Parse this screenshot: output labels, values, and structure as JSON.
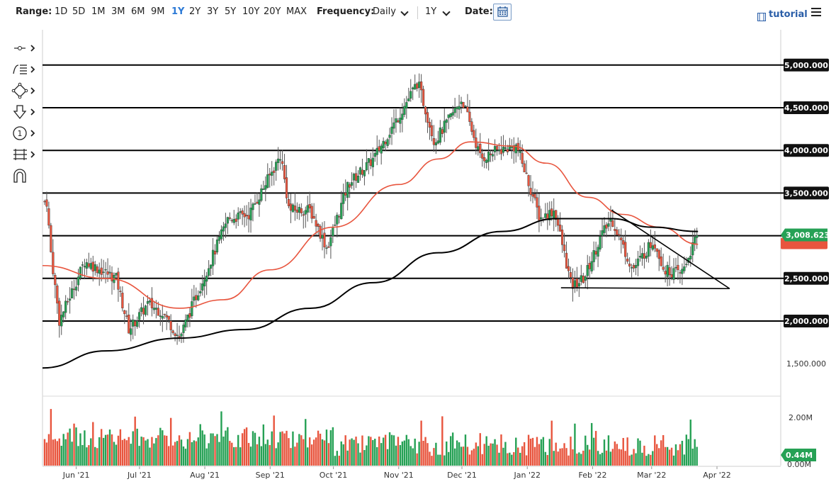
{
  "toolbar": {
    "range_label": "Range:",
    "ranges": [
      "1D",
      "5D",
      "1M",
      "3M",
      "6M",
      "9M",
      "1Y",
      "2Y",
      "3Y",
      "5Y",
      "10Y",
      "20Y",
      "MAX"
    ],
    "active_range": "1Y",
    "frequency_label": "Frequency:",
    "frequency_value": "Daily",
    "period_value": "1Y",
    "date_label": "Date:",
    "tutorial_label": "tutorial"
  },
  "drawing_tools": [
    "cursor-tool-icon",
    "line-list-icon",
    "shape-tool-icon",
    "arrow-down-icon",
    "number-marker-icon",
    "measure-tool-icon",
    "magnet-icon"
  ],
  "chart_data": {
    "type": "candlestick",
    "x_tick_labels": [
      "Jun '21",
      "Jul '21",
      "Aug '21",
      "Sep '21",
      "Oct '21",
      "Nov '21",
      "Dec '21",
      "Jan '22",
      "Feb '22",
      "Mar '22",
      "Apr '22"
    ],
    "y_tick_labels": [
      "5,000.000",
      "4,500.000",
      "4,000.000",
      "3,500.000",
      "2,500.000",
      "2,000.000",
      "1,500.000"
    ],
    "y_tick_values": [
      5000,
      4500,
      4000,
      3500,
      2500,
      2000,
      1500
    ],
    "ylim": [
      1100,
      5250
    ],
    "current_price_label": "3,008.623",
    "current_price": 3008.623,
    "horizontal_levels": [
      5000,
      4500,
      4000,
      3500,
      3000,
      2500,
      2000
    ],
    "price_anchors": [
      {
        "date": "2021-05-18",
        "value": 3400
      },
      {
        "date": "2021-05-20",
        "value": 2800
      },
      {
        "date": "2021-05-24",
        "value": 2000
      },
      {
        "date": "2021-06-05",
        "value": 2700
      },
      {
        "date": "2021-06-20",
        "value": 2500
      },
      {
        "date": "2021-06-26",
        "value": 1900
      },
      {
        "date": "2021-07-05",
        "value": 2200
      },
      {
        "date": "2021-07-12",
        "value": 2100
      },
      {
        "date": "2021-07-20",
        "value": 1800
      },
      {
        "date": "2021-07-28",
        "value": 2300
      },
      {
        "date": "2021-08-12",
        "value": 3200
      },
      {
        "date": "2021-08-22",
        "value": 3250
      },
      {
        "date": "2021-09-03",
        "value": 3800
      },
      {
        "date": "2021-09-06",
        "value": 3950
      },
      {
        "date": "2021-09-10",
        "value": 3300
      },
      {
        "date": "2021-09-20",
        "value": 3300
      },
      {
        "date": "2021-09-28",
        "value": 2850
      },
      {
        "date": "2021-10-08",
        "value": 3600
      },
      {
        "date": "2021-10-20",
        "value": 3900
      },
      {
        "date": "2021-11-01",
        "value": 4400
      },
      {
        "date": "2021-11-10",
        "value": 4800
      },
      {
        "date": "2021-11-18",
        "value": 4100
      },
      {
        "date": "2021-12-01",
        "value": 4600
      },
      {
        "date": "2021-12-10",
        "value": 3900
      },
      {
        "date": "2021-12-18",
        "value": 4000
      },
      {
        "date": "2021-12-27",
        "value": 4050
      },
      {
        "date": "2022-01-07",
        "value": 3200
      },
      {
        "date": "2022-01-14",
        "value": 3300
      },
      {
        "date": "2022-01-22",
        "value": 2400
      },
      {
        "date": "2022-01-28",
        "value": 2500
      },
      {
        "date": "2022-02-05",
        "value": 3000
      },
      {
        "date": "2022-02-10",
        "value": 3200
      },
      {
        "date": "2022-02-20",
        "value": 2600
      },
      {
        "date": "2022-03-02",
        "value": 2950
      },
      {
        "date": "2022-03-07",
        "value": 2600
      },
      {
        "date": "2022-03-15",
        "value": 2550
      },
      {
        "date": "2022-03-21",
        "value": 2900
      },
      {
        "date": "2022-03-23",
        "value": 3008
      }
    ],
    "ma_50_anchors": [
      {
        "date": "2021-05-16",
        "value": 2650
      },
      {
        "date": "2021-06-15",
        "value": 2500
      },
      {
        "date": "2021-07-20",
        "value": 2150
      },
      {
        "date": "2021-08-10",
        "value": 2250
      },
      {
        "date": "2021-09-01",
        "value": 2600
      },
      {
        "date": "2021-10-01",
        "value": 3100
      },
      {
        "date": "2021-11-01",
        "value": 3600
      },
      {
        "date": "2021-11-20",
        "value": 3900
      },
      {
        "date": "2021-12-05",
        "value": 4100
      },
      {
        "date": "2021-12-25",
        "value": 4050
      },
      {
        "date": "2022-01-10",
        "value": 3850
      },
      {
        "date": "2022-01-30",
        "value": 3450
      },
      {
        "date": "2022-02-15",
        "value": 3250
      },
      {
        "date": "2022-03-05",
        "value": 3100
      },
      {
        "date": "2022-03-23",
        "value": 2900
      }
    ],
    "ma_200_anchors": [
      {
        "date": "2021-05-16",
        "value": 1450
      },
      {
        "date": "2021-06-15",
        "value": 1650
      },
      {
        "date": "2021-07-20",
        "value": 1800
      },
      {
        "date": "2021-08-20",
        "value": 1900
      },
      {
        "date": "2021-09-20",
        "value": 2150
      },
      {
        "date": "2021-10-20",
        "value": 2450
      },
      {
        "date": "2021-11-20",
        "value": 2800
      },
      {
        "date": "2021-12-20",
        "value": 3050
      },
      {
        "date": "2022-01-15",
        "value": 3200
      },
      {
        "date": "2022-02-10",
        "value": 3200
      },
      {
        "date": "2022-03-01",
        "value": 3100
      },
      {
        "date": "2022-03-23",
        "value": 3050
      }
    ],
    "trendlines": [
      {
        "from": {
          "date": "2022-02-10",
          "value": 3300
        },
        "to": {
          "date": "2022-04-07",
          "value": 2380
        }
      },
      {
        "from": {
          "date": "2022-01-17",
          "value": 2390
        },
        "to": {
          "date": "2022-04-07",
          "value": 2380
        }
      }
    ],
    "volume_tick_labels": [
      "2.00M",
      "0.00M"
    ],
    "volume_tick_values": [
      2.0,
      0
    ],
    "current_volume_label": "0.44M",
    "current_volume": 0.44
  },
  "colors": {
    "up": "#26a155",
    "down": "#e8553e",
    "ma_50": "#e8553e",
    "ma_200": "#000000",
    "badge_dark": "#111111",
    "badge_price": "#26a155",
    "accent": "#2c7ad6"
  }
}
